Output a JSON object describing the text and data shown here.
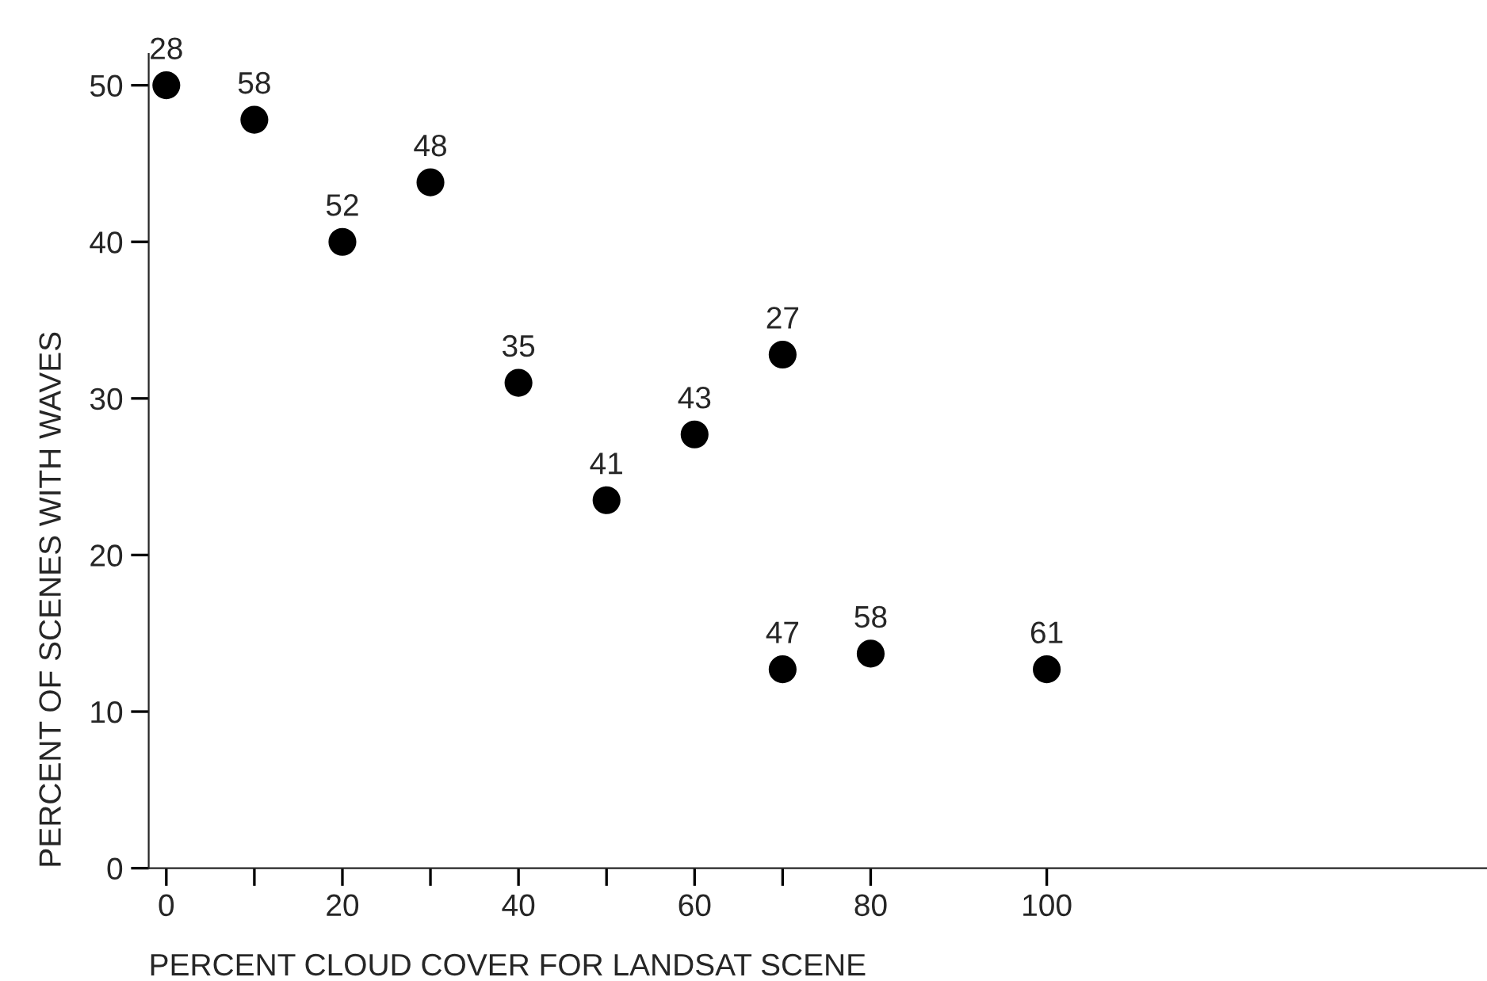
{
  "chart_data": {
    "type": "scatter",
    "xlabel": "PERCENT CLOUD COVER FOR LANDSAT SCENE",
    "ylabel": "PERCENT OF SCENES WITH WAVES",
    "series": [
      {
        "color": "#000000",
        "x": [
          0,
          10,
          20,
          30,
          40,
          50,
          60,
          70,
          70,
          80,
          100
        ],
        "values": [
          50,
          47.8,
          40,
          43.8,
          31,
          23.5,
          27.7,
          32.8,
          12.7,
          13.7,
          12.7
        ]
      }
    ],
    "annotations": [
      {
        "text": "28",
        "x": 0,
        "y": 50
      },
      {
        "text": "58",
        "x": 10,
        "y": 47.8
      },
      {
        "text": "52",
        "x": 20,
        "y": 40
      },
      {
        "text": "48",
        "x": 30,
        "y": 43.8
      },
      {
        "text": "35",
        "x": 40,
        "y": 31
      },
      {
        "text": "41",
        "x": 50,
        "y": 23.5
      },
      {
        "text": "43",
        "x": 60,
        "y": 27.7
      },
      {
        "text": "27",
        "x": 70,
        "y": 32.8
      },
      {
        "text": "47",
        "x": 70,
        "y": 12.7
      },
      {
        "text": "58",
        "x": 80,
        "y": 13.7
      },
      {
        "text": "61",
        "x": 100,
        "y": 12.7
      }
    ],
    "xlim": [
      -2,
      150
    ],
    "ylim": [
      0,
      52
    ],
    "xticks": [
      0,
      {
        "value": 10,
        "label": null
      },
      20,
      {
        "value": 30,
        "label": null
      },
      40,
      {
        "value": 50,
        "label": null
      },
      60,
      {
        "value": 70,
        "label": null
      },
      80,
      100
    ],
    "yticks": [
      0,
      10,
      20,
      30,
      40,
      50
    ],
    "marker": "circle",
    "grid": false,
    "legend": false
  }
}
